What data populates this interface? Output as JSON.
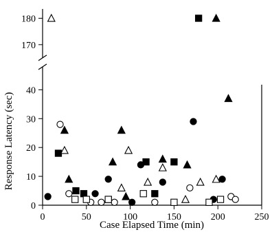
{
  "chart_data": {
    "type": "scatter",
    "xlabel": "Case Elapsed Time (min)",
    "ylabel": "Response Latency (sec)",
    "xlim": [
      0,
      250
    ],
    "x_ticks": [
      "0",
      "50",
      "100",
      "150",
      "200",
      "250"
    ],
    "ylim_lower": [
      0,
      42
    ],
    "y_ticks_lower": [
      "0",
      "10",
      "20",
      "30",
      "40"
    ],
    "ylim_upper": [
      165,
      183
    ],
    "y_ticks_upper": [
      "170",
      "180"
    ],
    "axis_break": true,
    "grid": false,
    "legend": "none",
    "series": [
      {
        "marker": "filled-square",
        "points": [
          {
            "x": 18,
            "y": 18
          },
          {
            "x": 38,
            "y": 5
          },
          {
            "x": 47,
            "y": 4
          },
          {
            "x": 75,
            "y": 2
          },
          {
            "x": 118,
            "y": 15
          },
          {
            "x": 128,
            "y": 4
          },
          {
            "x": 150,
            "y": 15
          },
          {
            "x": 178,
            "y": 180
          }
        ]
      },
      {
        "marker": "filled-triangle",
        "points": [
          {
            "x": 25,
            "y": 26
          },
          {
            "x": 30,
            "y": 9
          },
          {
            "x": 80,
            "y": 15
          },
          {
            "x": 90,
            "y": 26
          },
          {
            "x": 95,
            "y": 3
          },
          {
            "x": 137,
            "y": 16
          },
          {
            "x": 165,
            "y": 14
          },
          {
            "x": 212,
            "y": 37
          },
          {
            "x": 198,
            "y": 180
          }
        ]
      },
      {
        "marker": "filled-circle",
        "points": [
          {
            "x": 6,
            "y": 3
          },
          {
            "x": 60,
            "y": 4
          },
          {
            "x": 75,
            "y": 9
          },
          {
            "x": 102,
            "y": 1
          },
          {
            "x": 112,
            "y": 14
          },
          {
            "x": 137,
            "y": 8
          },
          {
            "x": 172,
            "y": 29
          },
          {
            "x": 195,
            "y": 2
          },
          {
            "x": 205,
            "y": 9
          }
        ]
      },
      {
        "marker": "open-triangle",
        "points": [
          {
            "x": 25,
            "y": 19
          },
          {
            "x": 90,
            "y": 6
          },
          {
            "x": 98,
            "y": 19
          },
          {
            "x": 120,
            "y": 8
          },
          {
            "x": 137,
            "y": 13
          },
          {
            "x": 163,
            "y": 2
          },
          {
            "x": 180,
            "y": 8
          },
          {
            "x": 198,
            "y": 9
          },
          {
            "x": 10,
            "y": 180
          }
        ]
      },
      {
        "marker": "open-circle",
        "points": [
          {
            "x": 20,
            "y": 28
          },
          {
            "x": 30,
            "y": 4
          },
          {
            "x": 55,
            "y": 1
          },
          {
            "x": 67,
            "y": 1
          },
          {
            "x": 82,
            "y": 1
          },
          {
            "x": 128,
            "y": 1
          },
          {
            "x": 168,
            "y": 6
          },
          {
            "x": 215,
            "y": 3
          },
          {
            "x": 220,
            "y": 2
          }
        ]
      },
      {
        "marker": "open-square",
        "points": [
          {
            "x": 37,
            "y": 2
          },
          {
            "x": 50,
            "y": 2
          },
          {
            "x": 75,
            "y": 2
          },
          {
            "x": 115,
            "y": 4
          },
          {
            "x": 150,
            "y": 1
          },
          {
            "x": 190,
            "y": 1
          },
          {
            "x": 203,
            "y": 2
          }
        ]
      }
    ]
  }
}
